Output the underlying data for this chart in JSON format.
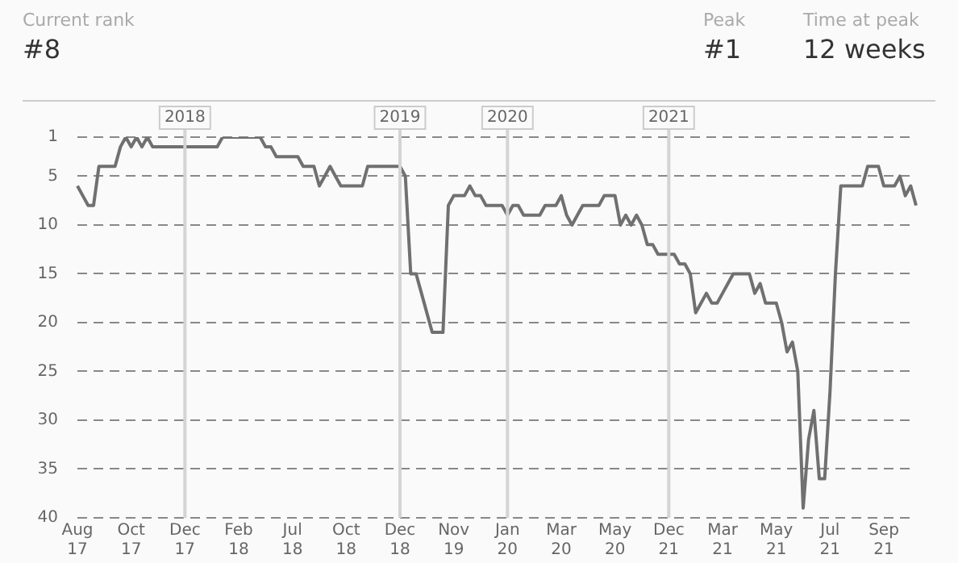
{
  "chart_data": {
    "type": "line",
    "annotations": [
      "Current rank",
      "#8",
      "Peak",
      "#1",
      "Time at peak",
      "12 weeks"
    ],
    "categories": [
      "Aug 17",
      null,
      null,
      null,
      null,
      null,
      null,
      null,
      null,
      null,
      "Oct 17",
      null,
      null,
      null,
      null,
      null,
      null,
      null,
      null,
      null,
      "Dec 17",
      null,
      null,
      null,
      null,
      null,
      null,
      null,
      null,
      null,
      "Feb 18",
      null,
      null,
      null,
      null,
      null,
      null,
      null,
      null,
      null,
      "Jul 18",
      null,
      null,
      null,
      null,
      null,
      null,
      null,
      null,
      null,
      "Oct 18",
      null,
      null,
      null,
      null,
      null,
      null,
      null,
      null,
      null,
      "Dec 18",
      null,
      null,
      null,
      null,
      null,
      null,
      null,
      null,
      null,
      "Nov 19",
      null,
      null,
      null,
      null,
      null,
      null,
      null,
      null,
      null,
      "Jan 20",
      null,
      null,
      null,
      null,
      null,
      null,
      null,
      null,
      null,
      "Mar 20",
      null,
      null,
      null,
      null,
      null,
      null,
      null,
      null,
      null,
      "May 20",
      null,
      null,
      null,
      null,
      null,
      null,
      null,
      null,
      null,
      "Dec 21",
      null,
      null,
      null,
      null,
      null,
      null,
      null,
      null,
      null,
      "Mar 21",
      null,
      null,
      null,
      null,
      null,
      null,
      null,
      null,
      null,
      "May 21",
      null,
      null,
      null,
      null,
      null,
      null,
      null,
      null,
      null,
      "Jul 21",
      null,
      null,
      null,
      null,
      null,
      null,
      null,
      null,
      null,
      "Sep 21",
      null,
      null,
      null,
      null,
      null,
      null
    ],
    "series": [
      {
        "color": "#707070",
        "values": [
          6,
          7,
          8,
          8,
          4,
          4,
          4,
          4,
          2,
          1,
          2,
          1,
          2,
          1,
          2,
          2,
          2,
          2,
          2,
          2,
          2,
          2,
          2,
          2,
          2,
          2,
          2,
          1,
          1,
          1,
          1,
          1,
          1,
          1,
          1,
          2,
          2,
          3,
          3,
          3,
          3,
          3,
          4,
          4,
          4,
          6,
          5,
          4,
          5,
          6,
          6,
          6,
          6,
          6,
          4,
          4,
          4,
          4,
          4,
          4,
          4,
          5,
          15,
          15,
          17,
          19,
          21,
          21,
          21,
          8,
          7,
          7,
          7,
          6,
          7,
          7,
          8,
          8,
          8,
          8,
          9,
          8,
          8,
          9,
          9,
          9,
          9,
          8,
          8,
          8,
          7,
          9,
          10,
          9,
          8,
          8,
          8,
          8,
          7,
          7,
          7,
          10,
          9,
          10,
          9,
          10,
          12,
          12,
          13,
          13,
          13,
          13,
          14,
          14,
          15,
          19,
          18,
          17,
          18,
          18,
          17,
          16,
          15,
          15,
          15,
          15,
          17,
          16,
          18,
          18,
          18,
          20,
          23,
          22,
          25,
          39,
          32,
          29,
          36,
          36,
          27,
          15,
          6,
          6,
          6,
          6,
          6,
          4,
          4,
          4,
          6,
          6,
          6,
          5,
          7,
          6,
          8
        ]
      }
    ],
    "ylim": [
      40,
      1
    ],
    "yticks": [
      1,
      5,
      10,
      15,
      20,
      25,
      30,
      35,
      40
    ],
    "grid": "y",
    "line_style": "solid",
    "ref_lines": [
      {
        "axis": "x",
        "value": "Dec 17",
        "label": "2018",
        "color": "#d4d4d4"
      },
      {
        "axis": "x",
        "value": "Dec 18",
        "label": "2019",
        "color": "#d4d4d4"
      },
      {
        "axis": "x",
        "value": "Jan 20",
        "label": "2020",
        "color": "#d4d4d4"
      },
      {
        "axis": "x",
        "value": "Dec 21",
        "label": "2021",
        "color": "#d4d4d4"
      }
    ]
  }
}
